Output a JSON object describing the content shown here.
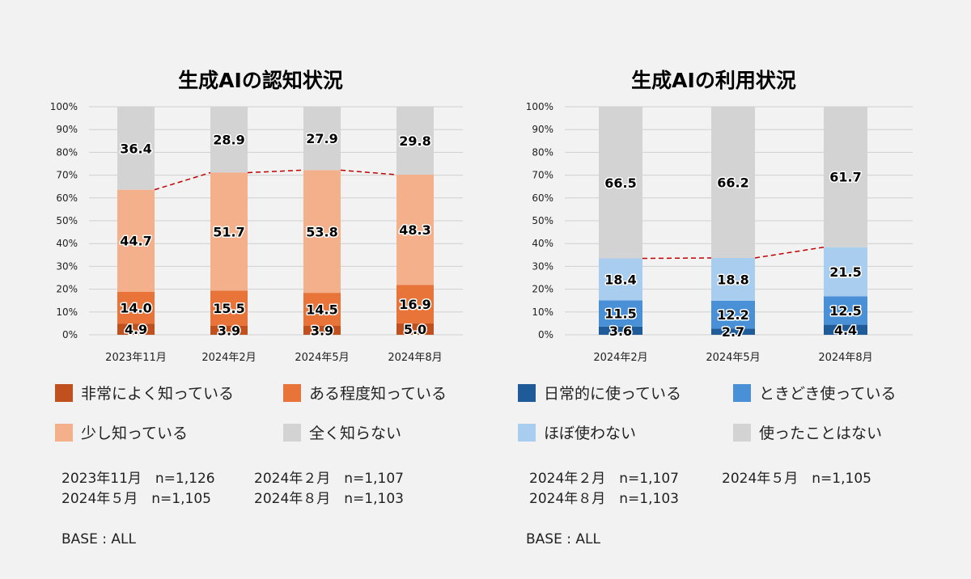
{
  "chart_data": [
    {
      "type": "bar",
      "stacked": true,
      "title": "生成AIの認知状況",
      "categories": [
        "2023年11月",
        "2024年2月",
        "2024年5月",
        "2024年8月"
      ],
      "series": [
        {
          "name": "非常によく知っている",
          "color": "#c0501d",
          "values": [
            4.9,
            3.9,
            3.9,
            5.0
          ]
        },
        {
          "name": "ある程度知っている",
          "color": "#e8743a",
          "values": [
            14.0,
            15.5,
            14.5,
            16.9
          ]
        },
        {
          "name": "少し知っている",
          "color": "#f4b08a",
          "values": [
            44.7,
            51.7,
            53.8,
            48.3
          ]
        },
        {
          "name": "全く知らない",
          "color": "#d3d3d3",
          "values": [
            36.4,
            28.9,
            27.9,
            29.8
          ]
        }
      ],
      "yticks": [
        "0%",
        "10%",
        "20%",
        "30%",
        "40%",
        "50%",
        "60%",
        "70%",
        "80%",
        "90%",
        "100%"
      ],
      "ylim": [
        0,
        100
      ],
      "trend_line": "red dashed line connecting cumulative top of known categories",
      "legend_placement": "bottom",
      "notes": [
        "2023年11月　n=1,126",
        "2024年２月　n=1,107",
        "2024年５月　n=1,105",
        "2024年８月　n=1,103"
      ],
      "base": "BASE : ALL"
    },
    {
      "type": "bar",
      "stacked": true,
      "title": "生成AIの利用状況",
      "categories": [
        "2024年2月",
        "2024年5月",
        "2024年8月"
      ],
      "series": [
        {
          "name": "日常的に使っている",
          "color": "#1f5a99",
          "values": [
            3.6,
            2.7,
            4.4
          ]
        },
        {
          "name": "ときどき使っている",
          "color": "#4a90d6",
          "values": [
            11.5,
            12.2,
            12.5
          ]
        },
        {
          "name": "ほぼ使わない",
          "color": "#a9cdef",
          "values": [
            18.4,
            18.8,
            21.5
          ]
        },
        {
          "name": "使ったことはない",
          "color": "#d3d3d3",
          "values": [
            66.5,
            66.2,
            61.7
          ]
        }
      ],
      "yticks": [
        "0%",
        "10%",
        "20%",
        "30%",
        "40%",
        "50%",
        "60%",
        "70%",
        "80%",
        "90%",
        "100%"
      ],
      "ylim": [
        0,
        100
      ],
      "trend_line": "red dashed line connecting cumulative top of used categories",
      "legend_placement": "bottom",
      "notes": [
        "2024年２月　n=1,107",
        "2024年５月　n=1,105",
        "2024年８月　n=1,103"
      ],
      "base": "BASE : ALL"
    }
  ]
}
